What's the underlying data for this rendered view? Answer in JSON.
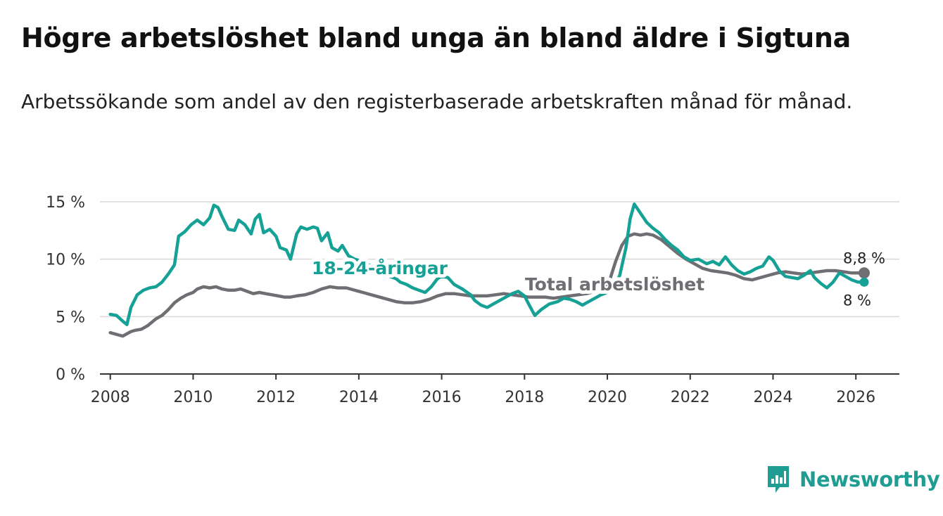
{
  "header": {
    "title": "Högre arbetslöshet bland unga än bland äldre i Sigtuna",
    "subtitle": "Arbetssökande som andel av den registerbaserade arbetskraften månad för månad."
  },
  "branding": {
    "name": "Newsworthy",
    "icon": "newsworthy-chart-icon",
    "color": "#1f9d93"
  },
  "chart_data": {
    "type": "line",
    "title": "Högre arbetslöshet bland unga än bland äldre i Sigtuna",
    "subtitle": "Arbetssökande som andel av den registerbaserade arbetskraften månad för månad.",
    "xlabel": "",
    "ylabel": "",
    "xlim": [
      2007.75,
      2027.05
    ],
    "ylim": [
      0,
      15
    ],
    "x_ticks": [
      2008,
      2010,
      2012,
      2014,
      2016,
      2018,
      2020,
      2022,
      2024,
      2026
    ],
    "x_tick_labels": [
      "2008",
      "2010",
      "2012",
      "2014",
      "2016",
      "2018",
      "2020",
      "2022",
      "2024",
      "2026"
    ],
    "y_ticks": [
      0,
      5,
      10,
      15
    ],
    "y_tick_labels": [
      "0 %",
      "5 %",
      "10 %",
      "15 %"
    ],
    "grid": true,
    "series": [
      {
        "name": "18-24-åringar",
        "label": "18-24-åringar",
        "color": "#15a195",
        "end_label": "8 %",
        "x": [
          2008.0,
          2008.15,
          2008.3,
          2008.4,
          2008.5,
          2008.65,
          2008.8,
          2008.95,
          2009.1,
          2009.25,
          2009.4,
          2009.55,
          2009.65,
          2009.8,
          2009.95,
          2010.1,
          2010.25,
          2010.4,
          2010.5,
          2010.6,
          2010.7,
          2010.85,
          2011.0,
          2011.1,
          2011.25,
          2011.4,
          2011.5,
          2011.6,
          2011.7,
          2011.85,
          2012.0,
          2012.1,
          2012.25,
          2012.35,
          2012.5,
          2012.6,
          2012.75,
          2012.9,
          2013.0,
          2013.1,
          2013.25,
          2013.35,
          2013.5,
          2013.6,
          2013.75,
          2013.9,
          2014.0,
          2014.15,
          2014.3,
          2014.45,
          2014.6,
          2014.75,
          2014.9,
          2015.0,
          2015.15,
          2015.3,
          2015.45,
          2015.6,
          2015.75,
          2015.9,
          2016.0,
          2016.15,
          2016.3,
          2016.5,
          2016.7,
          2016.8,
          2016.95,
          2017.1,
          2017.3,
          2017.5,
          2017.7,
          2017.85,
          2018.0,
          2018.1,
          2018.25,
          2018.4,
          2018.6,
          2018.8,
          2018.95,
          2019.1,
          2019.25,
          2019.4,
          2019.5,
          2019.7,
          2019.85,
          2020.0,
          2020.15,
          2020.3,
          2020.45,
          2020.55,
          2020.65,
          2020.8,
          2020.95,
          2021.1,
          2021.25,
          2021.4,
          2021.55,
          2021.7,
          2021.85,
          2022.0,
          2022.2,
          2022.4,
          2022.55,
          2022.7,
          2022.85,
          2023.0,
          2023.15,
          2023.3,
          2023.45,
          2023.6,
          2023.75,
          2023.9,
          2024.0,
          2024.15,
          2024.3,
          2024.45,
          2024.6,
          2024.75,
          2024.9,
          2025.0,
          2025.15,
          2025.3,
          2025.45,
          2025.6,
          2025.75,
          2025.9,
          2026.05,
          2026.2
        ],
        "y": [
          5.2,
          5.1,
          4.6,
          4.3,
          5.8,
          6.9,
          7.3,
          7.5,
          7.6,
          8.0,
          8.7,
          9.5,
          12.0,
          12.4,
          13.0,
          13.4,
          13.0,
          13.6,
          14.7,
          14.5,
          13.7,
          12.6,
          12.5,
          13.4,
          13.0,
          12.2,
          13.5,
          13.9,
          12.3,
          12.6,
          12.0,
          11.0,
          10.8,
          10.0,
          12.2,
          12.8,
          12.6,
          12.8,
          12.7,
          11.6,
          12.3,
          11.0,
          10.7,
          11.2,
          10.3,
          10.0,
          9.9,
          9.6,
          9.4,
          9.0,
          8.8,
          8.5,
          8.3,
          8.0,
          7.8,
          7.5,
          7.3,
          7.1,
          7.6,
          8.3,
          8.5,
          8.4,
          7.8,
          7.4,
          6.9,
          6.4,
          6.0,
          5.8,
          6.2,
          6.6,
          7.0,
          7.2,
          6.8,
          6.1,
          5.1,
          5.6,
          6.1,
          6.3,
          6.6,
          6.5,
          6.3,
          6.0,
          6.2,
          6.6,
          6.9,
          7.1,
          7.5,
          8.6,
          11.0,
          13.5,
          14.8,
          14.0,
          13.2,
          12.7,
          12.3,
          11.7,
          11.2,
          10.8,
          10.2,
          9.9,
          10.0,
          9.6,
          9.8,
          9.5,
          10.2,
          9.5,
          9.0,
          8.7,
          8.9,
          9.2,
          9.4,
          10.2,
          9.9,
          9.0,
          8.5,
          8.4,
          8.3,
          8.6,
          9.0,
          8.4,
          7.9,
          7.5,
          8.0,
          8.8,
          8.5,
          8.2,
          8.0,
          8.0
        ]
      },
      {
        "name": "Total arbetslöshet",
        "label": "Total arbetslöshet",
        "color": "#6e6e73",
        "end_label": "8,8 %",
        "x": [
          2008.0,
          2008.1,
          2008.2,
          2008.3,
          2008.4,
          2008.5,
          2008.6,
          2008.75,
          2008.9,
          2009.0,
          2009.1,
          2009.25,
          2009.4,
          2009.55,
          2009.7,
          2009.85,
          2010.0,
          2010.1,
          2010.25,
          2010.4,
          2010.55,
          2010.7,
          2010.85,
          2011.0,
          2011.15,
          2011.3,
          2011.45,
          2011.6,
          2011.75,
          2011.9,
          2012.05,
          2012.2,
          2012.35,
          2012.5,
          2012.7,
          2012.9,
          2013.1,
          2013.3,
          2013.5,
          2013.7,
          2013.9,
          2014.1,
          2014.3,
          2014.5,
          2014.7,
          2014.9,
          2015.1,
          2015.3,
          2015.5,
          2015.7,
          2015.9,
          2016.1,
          2016.3,
          2016.5,
          2016.7,
          2016.9,
          2017.1,
          2017.3,
          2017.5,
          2017.7,
          2017.9,
          2018.1,
          2018.3,
          2018.5,
          2018.7,
          2018.9,
          2019.1,
          2019.3,
          2019.5,
          2019.7,
          2019.9,
          2020.05,
          2020.2,
          2020.35,
          2020.5,
          2020.65,
          2020.8,
          2020.95,
          2021.1,
          2021.3,
          2021.5,
          2021.7,
          2021.9,
          2022.1,
          2022.3,
          2022.5,
          2022.7,
          2022.9,
          2023.1,
          2023.3,
          2023.5,
          2023.7,
          2023.9,
          2024.1,
          2024.3,
          2024.5,
          2024.7,
          2024.9,
          2025.1,
          2025.3,
          2025.5,
          2025.7,
          2025.9,
          2026.05,
          2026.2
        ],
        "y": [
          3.6,
          3.5,
          3.4,
          3.3,
          3.5,
          3.7,
          3.8,
          3.9,
          4.2,
          4.5,
          4.8,
          5.1,
          5.6,
          6.2,
          6.6,
          6.9,
          7.1,
          7.4,
          7.6,
          7.5,
          7.6,
          7.4,
          7.3,
          7.3,
          7.4,
          7.2,
          7.0,
          7.1,
          7.0,
          6.9,
          6.8,
          6.7,
          6.7,
          6.8,
          6.9,
          7.1,
          7.4,
          7.6,
          7.5,
          7.5,
          7.3,
          7.1,
          6.9,
          6.7,
          6.5,
          6.3,
          6.2,
          6.2,
          6.3,
          6.5,
          6.8,
          7.0,
          7.0,
          6.9,
          6.8,
          6.8,
          6.8,
          6.9,
          7.0,
          6.9,
          6.8,
          6.7,
          6.7,
          6.7,
          6.6,
          6.7,
          6.8,
          6.9,
          7.0,
          7.2,
          7.5,
          8.1,
          9.8,
          11.2,
          12.0,
          12.2,
          12.1,
          12.2,
          12.1,
          11.7,
          11.1,
          10.5,
          10.0,
          9.6,
          9.2,
          9.0,
          8.9,
          8.8,
          8.6,
          8.3,
          8.2,
          8.4,
          8.6,
          8.8,
          8.9,
          8.8,
          8.7,
          8.8,
          8.9,
          9.0,
          9.0,
          8.9,
          8.8,
          8.8,
          8.8
        ]
      }
    ]
  }
}
